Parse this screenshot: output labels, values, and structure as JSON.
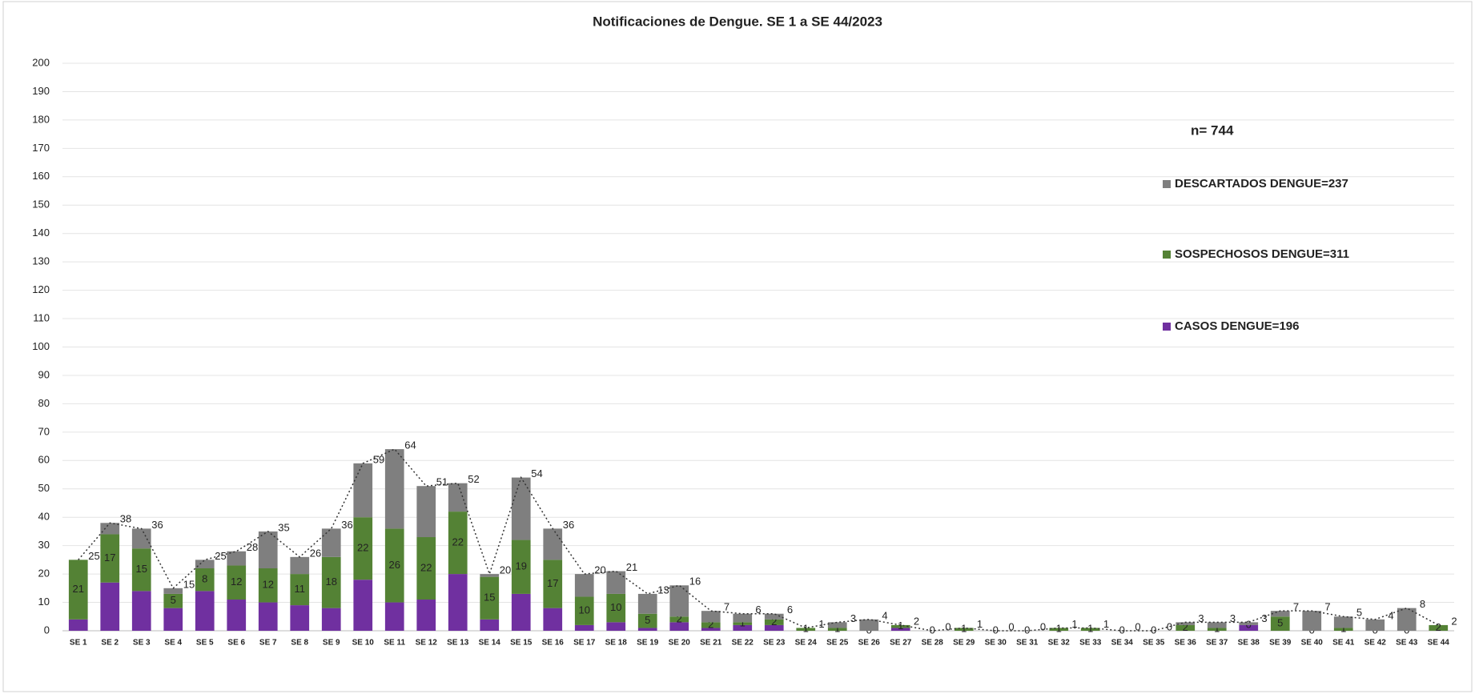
{
  "chart_data": {
    "type": "stacked_bar",
    "title": "Notificaciones de Dengue. SE 1 a SE 44/2023",
    "annotation": "n= 744",
    "categories": [
      "SE 1",
      "SE 2",
      "SE 3",
      "SE 4",
      "SE 5",
      "SE 6",
      "SE 7",
      "SE 8",
      "SE 9",
      "SE 10",
      "SE 11",
      "SE 12",
      "SE 13",
      "SE 14",
      "SE 15",
      "SE 16",
      "SE 17",
      "SE 18",
      "SE 19",
      "SE 20",
      "SE 21",
      "SE 22",
      "SE 23",
      "SE 24",
      "SE 25",
      "SE 26",
      "SE 27",
      "SE 28",
      "SE 29",
      "SE 30",
      "SE 31",
      "SE 32",
      "SE 33",
      "SE 34",
      "SE 35",
      "SE 36",
      "SE 37",
      "SE 38",
      "SE 39",
      "SE 40",
      "SE 41",
      "SE 42",
      "SE 43",
      "SE 44"
    ],
    "series": [
      {
        "name": "CASOS DENGUE=196",
        "color": "#7030a0",
        "values": [
          4,
          17,
          14,
          8,
          14,
          11,
          10,
          9,
          8,
          18,
          10,
          11,
          20,
          4,
          13,
          8,
          2,
          3,
          1,
          3,
          1,
          2,
          2,
          0,
          0,
          0,
          1,
          0,
          0,
          0,
          0,
          0,
          0,
          0,
          0,
          0,
          0,
          2,
          0,
          0,
          0,
          0,
          0,
          0
        ]
      },
      {
        "name": "SOSPECHOSOS DENGUE=311",
        "color": "#548235",
        "values": [
          21,
          17,
          15,
          5,
          8,
          12,
          12,
          11,
          18,
          22,
          26,
          22,
          22,
          15,
          19,
          17,
          10,
          10,
          5,
          2,
          2,
          1,
          2,
          1,
          1,
          0,
          1,
          0,
          1,
          0,
          0,
          1,
          1,
          0,
          0,
          2,
          1,
          0,
          5,
          0,
          1,
          0,
          0,
          2
        ]
      },
      {
        "name": "DESCARTADOS DENGUE=237",
        "color": "#7f7f7f",
        "values": [
          0,
          4,
          7,
          2,
          3,
          5,
          13,
          6,
          10,
          19,
          28,
          18,
          10,
          1,
          22,
          11,
          8,
          8,
          7,
          11,
          4,
          3,
          2,
          0,
          2,
          4,
          0,
          0,
          0,
          0,
          0,
          0,
          0,
          0,
          0,
          1,
          2,
          1,
          2,
          7,
          4,
          4,
          8,
          0
        ]
      }
    ],
    "totals": [
      25,
      38,
      36,
      15,
      25,
      28,
      35,
      26,
      36,
      59,
      64,
      51,
      52,
      20,
      54,
      36,
      20,
      21,
      13,
      16,
      7,
      6,
      6,
      1,
      3,
      4,
      2,
      0,
      1,
      0,
      0,
      1,
      1,
      0,
      0,
      3,
      3,
      3,
      7,
      7,
      5,
      4,
      8,
      2
    ],
    "ylim": [
      0,
      200
    ],
    "yticks": [
      0,
      10,
      20,
      30,
      40,
      50,
      60,
      70,
      80,
      90,
      100,
      110,
      120,
      130,
      140,
      150,
      160,
      170,
      180,
      190,
      200
    ],
    "grid": true
  }
}
